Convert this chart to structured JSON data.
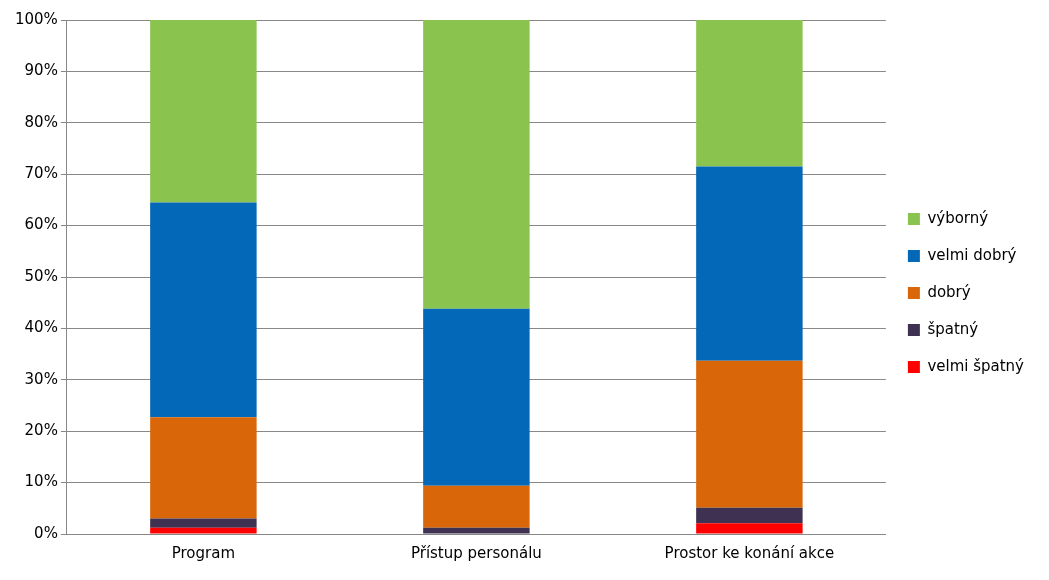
{
  "chart_data": {
    "type": "bar",
    "stacked": true,
    "categories": [
      "Program",
      "Přístup personálu",
      "Prostor ke konání akce"
    ],
    "series": [
      {
        "name": "velmi špatný",
        "color": "#ff0000",
        "values": [
          1.2,
          0,
          2.1
        ]
      },
      {
        "name": "špatný",
        "color": "#3f3151",
        "values": [
          1.8,
          1.2,
          3.0
        ]
      },
      {
        "name": "dobrý",
        "color": "#d9670a",
        "values": [
          19.7,
          8.2,
          28.6
        ]
      },
      {
        "name": "velmi dobrý",
        "color": "#0468b8",
        "values": [
          41.8,
          34.4,
          37.8
        ]
      },
      {
        "name": "výborný",
        "color": "#8bc34f",
        "values": [
          35.5,
          56.2,
          28.5
        ]
      }
    ],
    "ylim": [
      0,
      100
    ],
    "yticks": [
      {
        "value": 0,
        "label": "0%"
      },
      {
        "value": 10,
        "label": "10%"
      },
      {
        "value": 20,
        "label": "20%"
      },
      {
        "value": 30,
        "label": "30%"
      },
      {
        "value": 40,
        "label": "40%"
      },
      {
        "value": 50,
        "label": "50%"
      },
      {
        "value": 60,
        "label": "60%"
      },
      {
        "value": 70,
        "label": "70%"
      },
      {
        "value": 80,
        "label": "80%"
      },
      {
        "value": 90,
        "label": "90%"
      },
      {
        "value": 100,
        "label": "100%"
      }
    ],
    "grid": "y",
    "legend": "right"
  }
}
